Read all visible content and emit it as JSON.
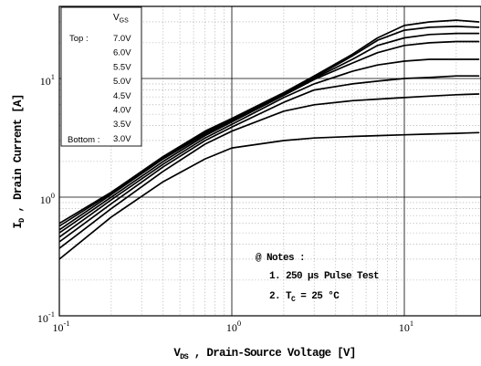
{
  "chart_data": {
    "type": "line",
    "xscale": "log",
    "yscale": "log",
    "xlim": [
      0.1,
      27
    ],
    "ylim": [
      0.1,
      35
    ],
    "grid": true,
    "xlabel": "V_DS , Drain-Source Voltage [V]",
    "ylabel": "I_D , Drain Current [A]",
    "x_ticks": [
      {
        "value": 0.1,
        "mantissa": "10",
        "exp": "-1"
      },
      {
        "value": 1,
        "mantissa": "10",
        "exp": "0"
      },
      {
        "value": 10,
        "mantissa": "10",
        "exp": "1"
      }
    ],
    "y_ticks": [
      {
        "value": 0.1,
        "mantissa": "10",
        "exp": "-1"
      },
      {
        "value": 1,
        "mantissa": "10",
        "exp": "0"
      },
      {
        "value": 10,
        "mantissa": "10",
        "exp": "1"
      }
    ],
    "legend": {
      "placement": "top-left",
      "header": "V_GS",
      "top_label": "Top :",
      "bottom_label": "Bottom :",
      "entries": [
        "7.0V",
        "6.0V",
        "5.5V",
        "5.0V",
        "4.5V",
        "4.0V",
        "3.5V",
        "3.0V"
      ]
    },
    "notes": {
      "title": "@ Notes :",
      "items": [
        "1. 250 µs Pulse Test",
        "2. T_C = 25 °C"
      ]
    },
    "series": [
      {
        "name": "7.0V",
        "x": [
          0.1,
          0.2,
          0.4,
          0.7,
          1,
          2,
          3,
          5,
          7,
          10,
          14,
          20,
          27
        ],
        "y": [
          0.6,
          1.1,
          2.2,
          3.6,
          4.6,
          7.6,
          10.5,
          16,
          22,
          28,
          30,
          31,
          30
        ]
      },
      {
        "name": "6.0V",
        "x": [
          0.1,
          0.2,
          0.4,
          0.7,
          1,
          2,
          3,
          5,
          7,
          10,
          14,
          20,
          27
        ],
        "y": [
          0.57,
          1.08,
          2.15,
          3.5,
          4.5,
          7.5,
          10.2,
          15.5,
          21,
          25.5,
          27,
          27.5,
          27
        ]
      },
      {
        "name": "5.5V",
        "x": [
          0.1,
          0.2,
          0.4,
          0.7,
          1,
          2,
          3,
          5,
          7,
          10,
          14,
          20,
          27
        ],
        "y": [
          0.53,
          1.05,
          2.1,
          3.4,
          4.4,
          7.3,
          10,
          14.5,
          19,
          22,
          23.5,
          24,
          24
        ]
      },
      {
        "name": "5.0V",
        "x": [
          0.1,
          0.2,
          0.4,
          0.7,
          1,
          2,
          3,
          5,
          7,
          10,
          14,
          20,
          27
        ],
        "y": [
          0.5,
          1.0,
          2.0,
          3.3,
          4.3,
          7.2,
          9.8,
          13.5,
          16.5,
          19,
          20,
          20.5,
          20.5
        ]
      },
      {
        "name": "4.5V",
        "x": [
          0.1,
          0.2,
          0.4,
          0.7,
          1,
          2,
          3,
          5,
          7,
          10,
          14,
          20,
          27
        ],
        "y": [
          0.46,
          0.95,
          1.9,
          3.15,
          4.1,
          6.9,
          9,
          11.5,
          13,
          14,
          14.5,
          14.5,
          14.5
        ]
      },
      {
        "name": "4.0V",
        "x": [
          0.1,
          0.2,
          0.4,
          0.7,
          1,
          2,
          3,
          5,
          7,
          10,
          14,
          20,
          27
        ],
        "y": [
          0.42,
          0.88,
          1.8,
          3.0,
          3.9,
          6.3,
          8,
          9,
          9.5,
          10,
          10.2,
          10.5,
          10.5
        ]
      },
      {
        "name": "3.5V",
        "x": [
          0.1,
          0.2,
          0.4,
          0.7,
          1,
          2,
          3,
          5,
          7,
          10,
          14,
          20,
          27
        ],
        "y": [
          0.37,
          0.8,
          1.65,
          2.8,
          3.6,
          5.3,
          6,
          6.5,
          6.7,
          6.9,
          7.1,
          7.3,
          7.4
        ]
      },
      {
        "name": "3.0V",
        "x": [
          0.1,
          0.2,
          0.4,
          0.7,
          1,
          2,
          3,
          5,
          7,
          10,
          14,
          20,
          27
        ],
        "y": [
          0.3,
          0.68,
          1.35,
          2.1,
          2.6,
          3.0,
          3.15,
          3.25,
          3.3,
          3.35,
          3.4,
          3.45,
          3.5
        ]
      }
    ]
  }
}
